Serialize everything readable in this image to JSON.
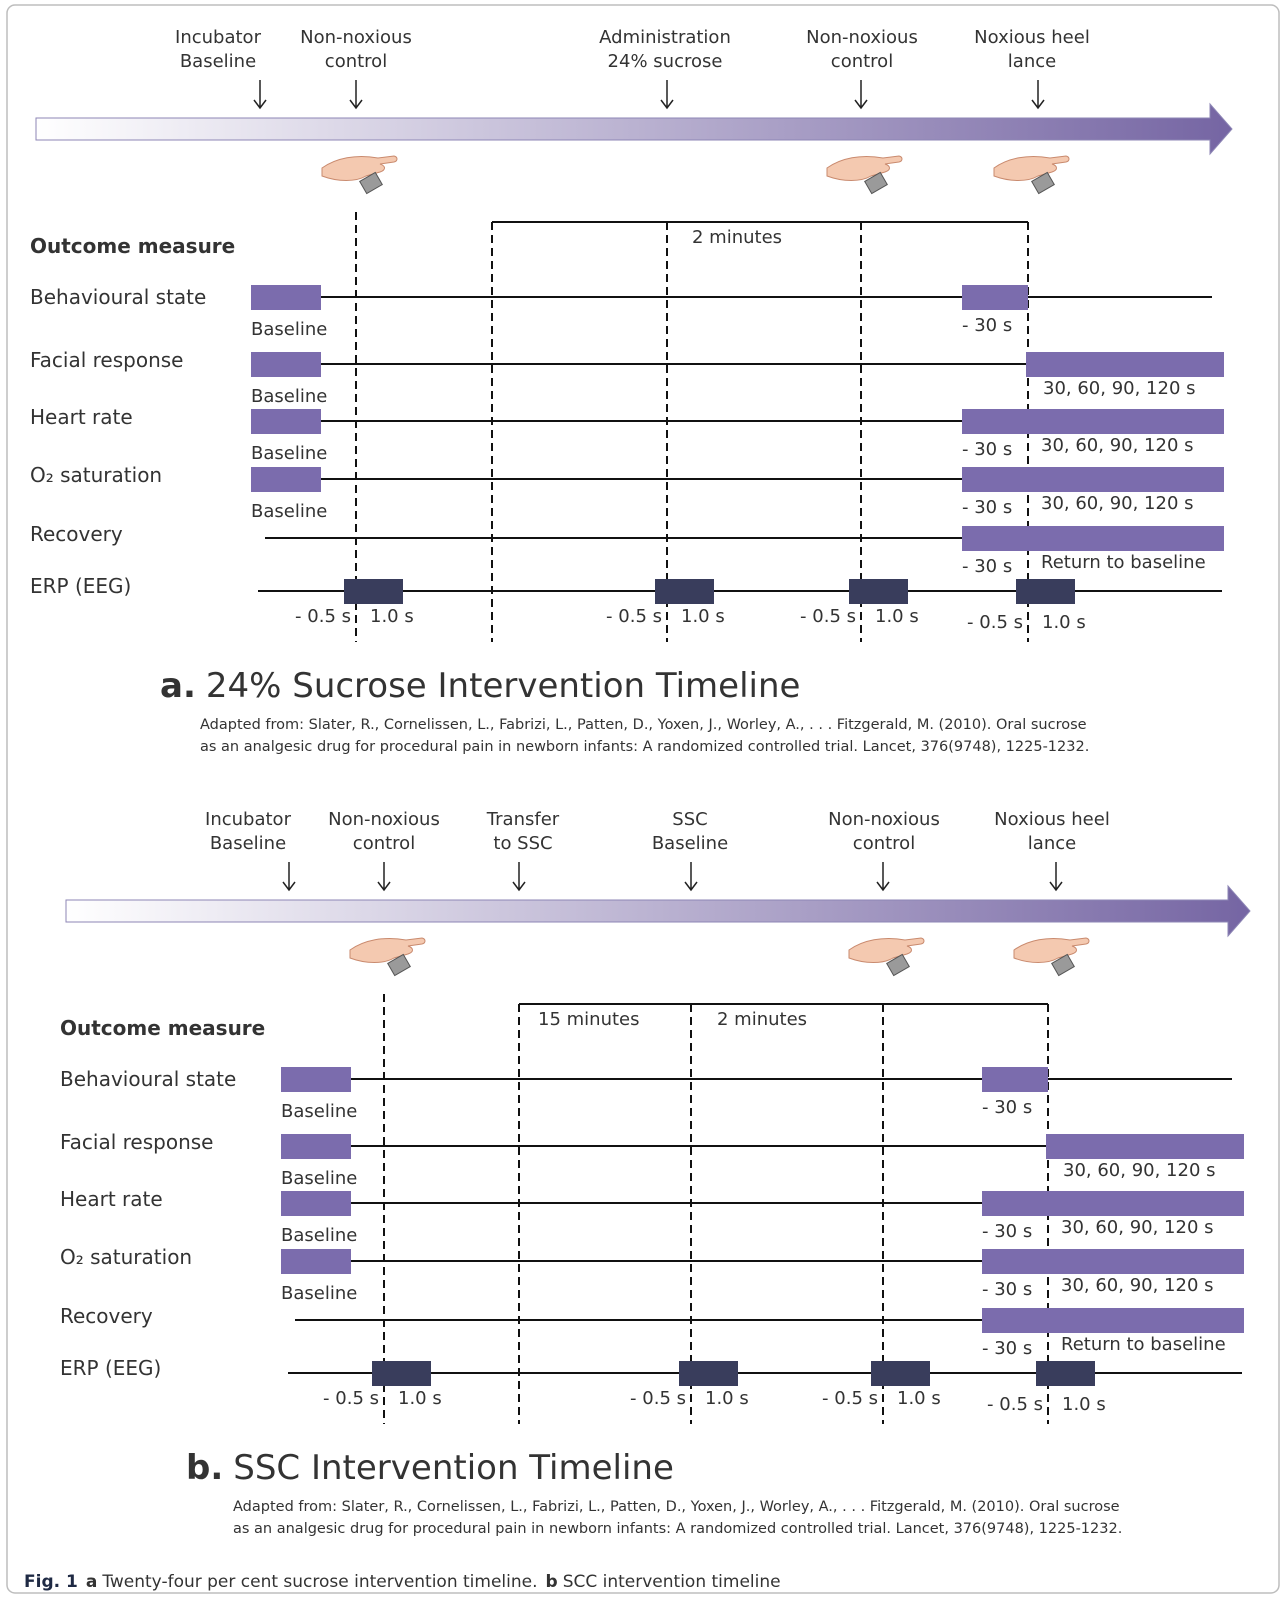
{
  "panels": [
    {
      "events": [
        {
          "label": [
            "Incubator",
            "Baseline"
          ]
        },
        {
          "label": [
            "Non-noxious",
            "control"
          ]
        },
        {
          "label": [
            "Administration",
            "24% sucrose"
          ]
        },
        {
          "label": [
            "Non-noxious",
            "control"
          ]
        },
        {
          "label": [
            "Noxious heel",
            "lance"
          ]
        }
      ],
      "intervals": [
        "2 minutes"
      ],
      "outcome_header": "Outcome measure",
      "rows": [
        {
          "label": "Behavioural state",
          "baseline": "Baseline",
          "pre": "- 30 s"
        },
        {
          "label": "Facial response",
          "baseline": "Baseline",
          "post": "30, 60, 90, 120 s"
        },
        {
          "label": "Heart rate",
          "baseline": "Baseline",
          "pre": "- 30 s",
          "post": "30, 60, 90, 120 s"
        },
        {
          "label": "O₂ saturation",
          "baseline": "Baseline",
          "pre": "- 30 s",
          "post": "30, 60, 90, 120 s"
        },
        {
          "label": "Recovery",
          "pre": "- 30 s",
          "post": "Return to baseline"
        }
      ],
      "erp": {
        "label": "ERP (EEG)",
        "marks": [
          [
            "- 0.5 s",
            "1.0 s"
          ],
          [
            "- 0.5 s",
            "1.0 s"
          ],
          [
            "- 0.5 s",
            "1.0 s"
          ],
          [
            "- 0.5 s",
            "1.0 s"
          ]
        ]
      },
      "title_letter": "a.",
      "title": "24% Sucrose Intervention Timeline",
      "citation": [
        "Adapted from:  Slater, R., Cornelissen, L., Fabrizi, L., Patten, D., Yoxen, J., Worley, A., . . . Fitzgerald, M. (2010). Oral sucrose",
        "as an analgesic drug for procedural pain in newborn infants: A randomized controlled trial. Lancet, 376(9748), 1225-1232."
      ]
    },
    {
      "events": [
        {
          "label": [
            "Incubator",
            "Baseline"
          ]
        },
        {
          "label": [
            "Non-noxious",
            "control"
          ]
        },
        {
          "label": [
            "Transfer",
            "to SSC"
          ]
        },
        {
          "label": [
            "SSC",
            "Baseline"
          ]
        },
        {
          "label": [
            "Non-noxious",
            "control"
          ]
        },
        {
          "label": [
            "Noxious heel",
            "lance"
          ]
        }
      ],
      "intervals": [
        "15 minutes",
        "2 minutes"
      ],
      "outcome_header": "Outcome measure",
      "rows": [
        {
          "label": "Behavioural state",
          "baseline": "Baseline",
          "pre": "- 30 s"
        },
        {
          "label": "Facial response",
          "baseline": "Baseline",
          "post": "30, 60, 90, 120 s"
        },
        {
          "label": "Heart rate",
          "baseline": "Baseline",
          "pre": "- 30 s",
          "post": "30, 60, 90, 120 s"
        },
        {
          "label": "O₂ saturation",
          "baseline": "Baseline",
          "pre": "- 30 s",
          "post": "30, 60, 90, 120 s"
        },
        {
          "label": "Recovery",
          "pre": "- 30 s",
          "post": "Return to baseline"
        }
      ],
      "erp": {
        "label": "ERP (EEG)",
        "marks": [
          [
            "- 0.5 s",
            "1.0 s"
          ],
          [
            "- 0.5 s",
            "1.0 s"
          ],
          [
            "- 0.5 s",
            "1.0 s"
          ],
          [
            "- 0.5 s",
            "1.0 s"
          ]
        ]
      },
      "title_letter": "b.",
      "title": "SSC Intervention Timeline",
      "citation": [
        "Adapted from:  Slater, R., Cornelissen, L., Fabrizi, L., Patten, D., Yoxen, J., Worley, A., . . . Fitzgerald, M. (2010). Oral sucrose",
        "as an analgesic drug for procedural pain in newborn infants: A randomized controlled trial. Lancet, 376(9748), 1225-1232."
      ]
    }
  ],
  "caption": {
    "fig": "Fig. 1",
    "parts": [
      {
        "letter": "a",
        "text": "Twenty-four per cent sucrose intervention timeline."
      },
      {
        "letter": "b",
        "text": "SCC intervention timeline"
      }
    ]
  }
}
